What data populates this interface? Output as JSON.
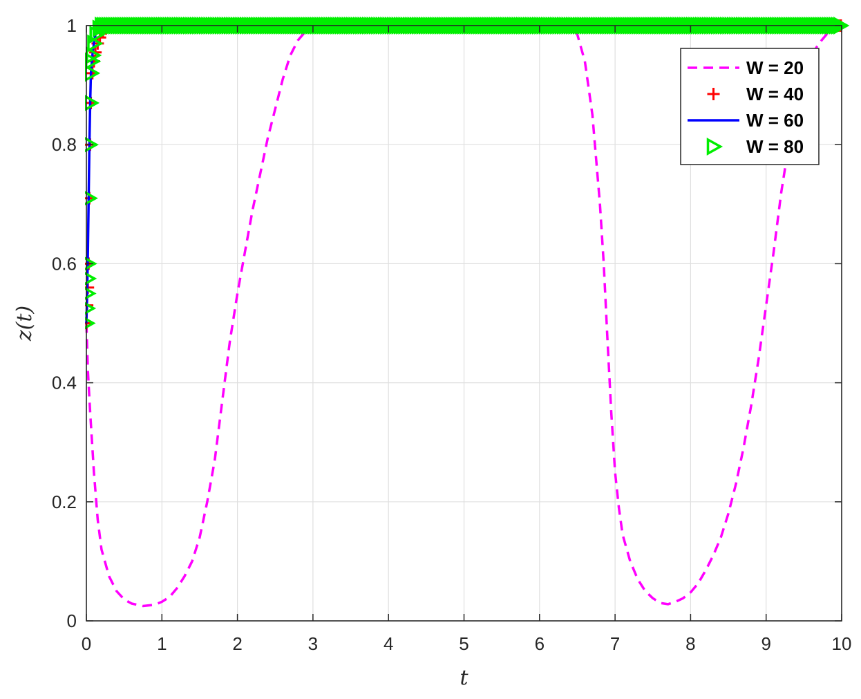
{
  "chart_data": {
    "type": "line",
    "xlabel": "t",
    "ylabel": "z(t)",
    "xlim": [
      0,
      10
    ],
    "ylim": [
      0,
      1.0
    ],
    "x_ticks": [
      "0",
      "1",
      "2",
      "3",
      "4",
      "5",
      "6",
      "7",
      "8",
      "9",
      "10"
    ],
    "y_ticks": [
      "0",
      "0.2",
      "0.4",
      "0.6",
      "0.8",
      "1"
    ],
    "grid": true,
    "legend_position": "top-right",
    "series": [
      {
        "name": "W = 20",
        "color": "#ff00ff",
        "style": "dashed",
        "marker": "none",
        "points": [
          [
            0,
            0.5
          ],
          [
            0.02,
            0.42
          ],
          [
            0.05,
            0.35
          ],
          [
            0.1,
            0.25
          ],
          [
            0.15,
            0.17
          ],
          [
            0.2,
            0.12
          ],
          [
            0.3,
            0.075
          ],
          [
            0.4,
            0.05
          ],
          [
            0.5,
            0.036
          ],
          [
            0.6,
            0.029
          ],
          [
            0.75,
            0.025
          ],
          [
            0.9,
            0.027
          ],
          [
            1.0,
            0.032
          ],
          [
            1.1,
            0.04
          ],
          [
            1.2,
            0.055
          ],
          [
            1.3,
            0.075
          ],
          [
            1.4,
            0.1
          ],
          [
            1.5,
            0.14
          ],
          [
            1.6,
            0.2
          ],
          [
            1.7,
            0.27
          ],
          [
            1.8,
            0.37
          ],
          [
            1.9,
            0.47
          ],
          [
            2.0,
            0.55
          ],
          [
            2.1,
            0.62
          ],
          [
            2.2,
            0.69
          ],
          [
            2.3,
            0.75
          ],
          [
            2.4,
            0.81
          ],
          [
            2.5,
            0.86
          ],
          [
            2.6,
            0.91
          ],
          [
            2.7,
            0.95
          ],
          [
            2.8,
            0.975
          ],
          [
            2.9,
            0.99
          ],
          [
            3.0,
            1.0
          ],
          [
            6.4,
            1.0
          ],
          [
            6.5,
            0.985
          ],
          [
            6.6,
            0.94
          ],
          [
            6.7,
            0.85
          ],
          [
            6.8,
            0.7
          ],
          [
            6.85,
            0.6
          ],
          [
            6.9,
            0.47
          ],
          [
            6.95,
            0.35
          ],
          [
            7.0,
            0.25
          ],
          [
            7.05,
            0.19
          ],
          [
            7.1,
            0.145
          ],
          [
            7.2,
            0.1
          ],
          [
            7.3,
            0.07
          ],
          [
            7.4,
            0.05
          ],
          [
            7.5,
            0.038
          ],
          [
            7.6,
            0.03
          ],
          [
            7.7,
            0.028
          ],
          [
            7.8,
            0.032
          ],
          [
            7.9,
            0.038
          ],
          [
            8.0,
            0.048
          ],
          [
            8.1,
            0.063
          ],
          [
            8.2,
            0.085
          ],
          [
            8.3,
            0.11
          ],
          [
            8.4,
            0.14
          ],
          [
            8.5,
            0.18
          ],
          [
            8.6,
            0.23
          ],
          [
            8.7,
            0.29
          ],
          [
            8.8,
            0.36
          ],
          [
            8.9,
            0.44
          ],
          [
            9.0,
            0.53
          ],
          [
            9.1,
            0.62
          ],
          [
            9.2,
            0.72
          ],
          [
            9.3,
            0.8
          ],
          [
            9.4,
            0.87
          ],
          [
            9.5,
            0.92
          ],
          [
            9.6,
            0.95
          ],
          [
            9.7,
            0.97
          ],
          [
            9.8,
            0.985
          ],
          [
            9.9,
            0.995
          ],
          [
            10.0,
            1.0
          ]
        ]
      },
      {
        "name": "W = 40",
        "color": "#ff0000",
        "style": "none",
        "marker": "plus",
        "points": [
          [
            0,
            0.5
          ],
          [
            0.01,
            0.53
          ],
          [
            0.02,
            0.56
          ],
          [
            0.03,
            0.6
          ],
          [
            0.04,
            0.71
          ],
          [
            0.05,
            0.8
          ],
          [
            0.06,
            0.87
          ],
          [
            0.08,
            0.92
          ],
          [
            0.1,
            0.94
          ],
          [
            0.12,
            0.955
          ],
          [
            0.15,
            0.97
          ],
          [
            0.18,
            0.98
          ],
          [
            0.22,
            0.99
          ],
          [
            0.26,
            0.995
          ],
          [
            0.3,
            1.0
          ],
          [
            0.4,
            1.0
          ],
          [
            0.6,
            1.0
          ],
          [
            1.0,
            1.0
          ],
          [
            2.0,
            1.0
          ],
          [
            4.0,
            1.0
          ],
          [
            6.0,
            1.0
          ],
          [
            8.0,
            1.0
          ],
          [
            10.0,
            1.0
          ]
        ]
      },
      {
        "name": "W = 60",
        "color": "#0000ff",
        "style": "solid",
        "marker": "none",
        "points": [
          [
            0,
            0.5
          ],
          [
            0.01,
            0.55
          ],
          [
            0.02,
            0.62
          ],
          [
            0.03,
            0.71
          ],
          [
            0.04,
            0.8
          ],
          [
            0.05,
            0.87
          ],
          [
            0.06,
            0.92
          ],
          [
            0.08,
            0.95
          ],
          [
            0.1,
            0.97
          ],
          [
            0.12,
            0.985
          ],
          [
            0.15,
            0.995
          ],
          [
            0.2,
            1.0
          ],
          [
            10.0,
            1.0
          ]
        ]
      },
      {
        "name": "W = 80",
        "color": "#00ee00",
        "style": "none",
        "marker": "triangle-right",
        "points": [
          [
            0,
            0.5
          ],
          [
            0.005,
            0.525
          ],
          [
            0.01,
            0.55
          ],
          [
            0.015,
            0.575
          ],
          [
            0.02,
            0.6
          ],
          [
            0.03,
            0.71
          ],
          [
            0.04,
            0.8
          ],
          [
            0.05,
            0.87
          ],
          [
            0.06,
            0.92
          ],
          [
            0.07,
            0.94
          ],
          [
            0.08,
            0.95
          ],
          [
            0.1,
            0.97
          ],
          [
            0.13,
            0.985
          ],
          [
            0.17,
            0.995
          ],
          [
            0.2,
            1.0
          ],
          [
            10.0,
            1.0
          ]
        ]
      }
    ]
  }
}
